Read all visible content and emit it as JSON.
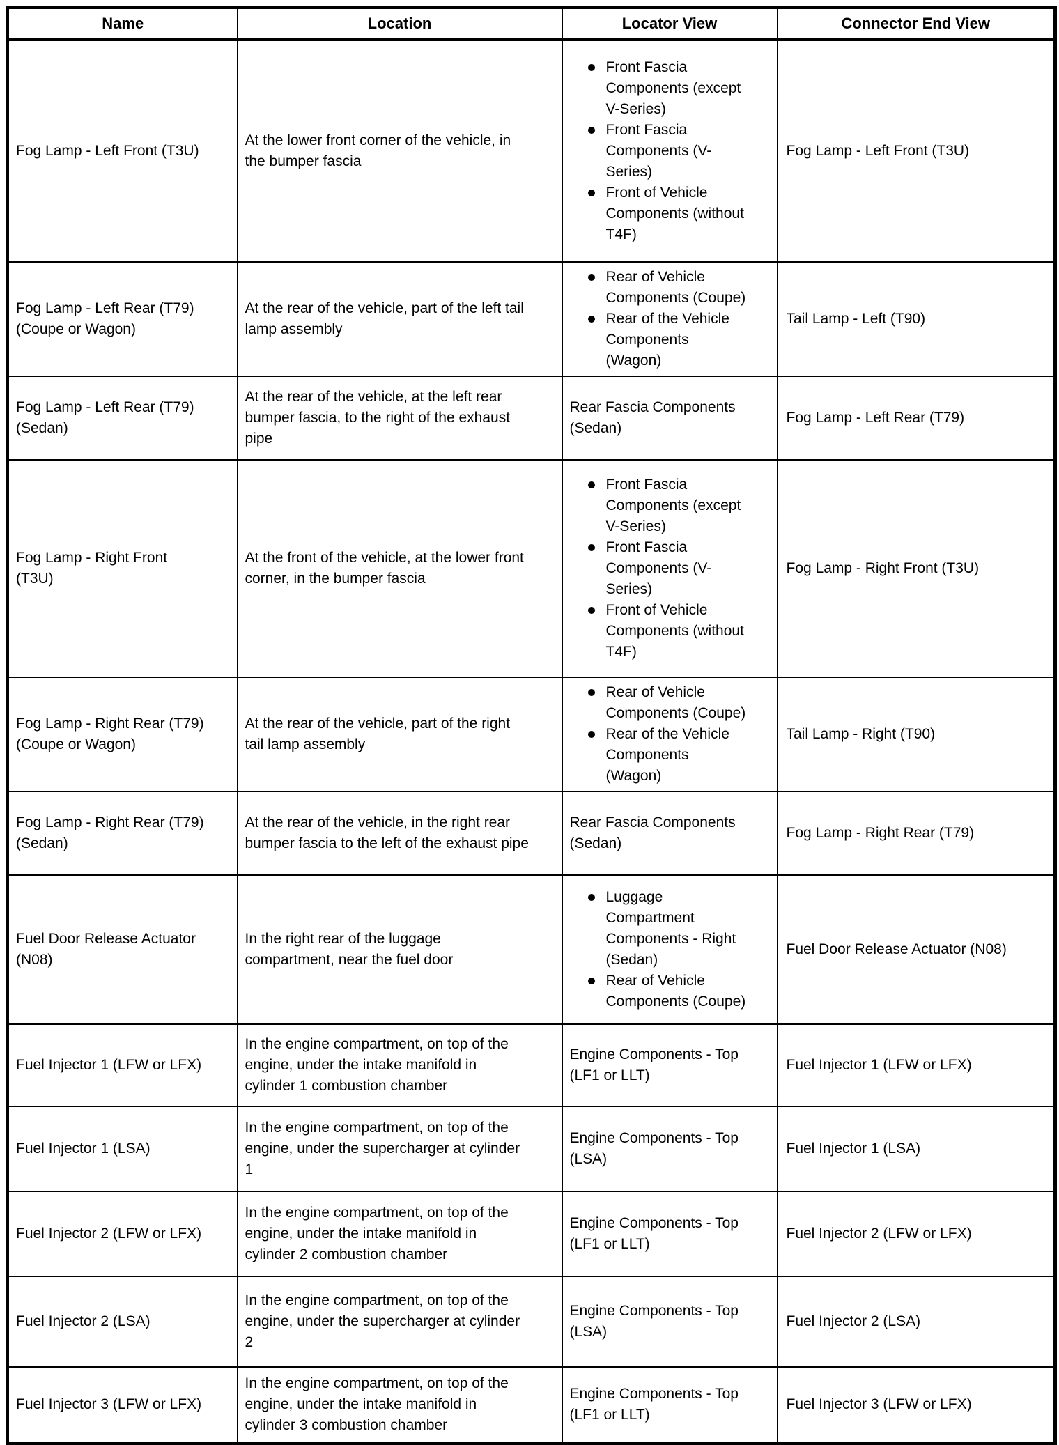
{
  "colors": {
    "text": "#000000",
    "border": "#000000",
    "background": "#ffffff"
  },
  "table": {
    "columns": [
      {
        "label": "Name"
      },
      {
        "label": "Location"
      },
      {
        "label": "Locator View"
      },
      {
        "label": "Connector End View"
      }
    ],
    "rows": [
      {
        "name": "Fog Lamp - Left Front (T3U)",
        "location": "At the lower front corner of the vehicle, in the bumper fascia",
        "locator_view": {
          "style": "bullets",
          "items": [
            "Front Fascia Components (except V-Series)",
            "Front Fascia Components (V-Series)",
            "Front of Vehicle Components (without T4F)"
          ]
        },
        "connector_end_view": "Fog Lamp - Left Front (T3U)"
      },
      {
        "name": "Fog Lamp - Left Rear (T79) (Coupe or Wagon)",
        "location": "At the rear of the vehicle, part of the left tail lamp assembly",
        "locator_view": {
          "style": "bullets",
          "items": [
            "Rear of Vehicle Components (Coupe)",
            "Rear of the Vehicle Components (Wagon)"
          ]
        },
        "connector_end_view": "Tail Lamp - Left (T90)"
      },
      {
        "name": "Fog Lamp - Left Rear (T79) (Sedan)",
        "location": "At the rear of the vehicle, at the left rear bumper fascia, to the right of the exhaust pipe",
        "locator_view": {
          "style": "text",
          "text": "Rear Fascia Components (Sedan)"
        },
        "connector_end_view": "Fog Lamp - Left Rear (T79)"
      },
      {
        "name": "Fog Lamp - Right Front (T3U)",
        "location": "At the front of the vehicle, at the lower front corner, in the bumper fascia",
        "locator_view": {
          "style": "bullets",
          "items": [
            "Front Fascia Components (except V-Series)",
            "Front Fascia Components (V-Series)",
            "Front of Vehicle Components (without T4F)"
          ]
        },
        "connector_end_view": "Fog Lamp - Right Front (T3U)"
      },
      {
        "name": "Fog Lamp - Right Rear (T79) (Coupe or Wagon)",
        "location": "At the rear of the vehicle, part of the right tail lamp assembly",
        "locator_view": {
          "style": "bullets",
          "items": [
            "Rear of Vehicle Components (Coupe)",
            "Rear of the Vehicle Components (Wagon)"
          ]
        },
        "connector_end_view": "Tail Lamp - Right (T90)"
      },
      {
        "name": "Fog Lamp - Right Rear (T79) (Sedan)",
        "location": "At the rear of the vehicle, in the right rear bumper fascia to the left of the exhaust pipe",
        "locator_view": {
          "style": "text",
          "text": "Rear Fascia Components (Sedan)"
        },
        "connector_end_view": "Fog Lamp - Right Rear (T79)"
      },
      {
        "name": "Fuel Door Release Actuator (N08)",
        "location": "In the right rear of the luggage compartment, near the fuel door",
        "locator_view": {
          "style": "bullets",
          "items": [
            "Luggage Compartment Components - Right (Sedan)",
            "Rear of Vehicle Components (Coupe)"
          ]
        },
        "connector_end_view": "Fuel Door Release Actuator (N08)"
      },
      {
        "name": "Fuel Injector 1 (LFW or LFX)",
        "location": "In the engine compartment, on top of the engine, under the intake manifold in cylinder 1 combustion chamber",
        "locator_view": {
          "style": "text",
          "text": "Engine Components - Top (LF1 or LLT)"
        },
        "connector_end_view": "Fuel Injector 1 (LFW or LFX)"
      },
      {
        "name": "Fuel Injector 1 (LSA)",
        "location": "In the engine compartment, on top of the engine, under the supercharger at cylinder 1",
        "locator_view": {
          "style": "text",
          "text": "Engine Components - Top (LSA)"
        },
        "connector_end_view": "Fuel Injector 1 (LSA)"
      },
      {
        "name": "Fuel Injector 2 (LFW or LFX)",
        "location": "In the engine compartment, on top of the engine, under the intake manifold in cylinder 2 combustion chamber",
        "locator_view": {
          "style": "text",
          "text": "Engine Components - Top (LF1 or LLT)"
        },
        "connector_end_view": "Fuel Injector 2 (LFW or LFX)"
      },
      {
        "name": "Fuel Injector 2 (LSA)",
        "location": "In the engine compartment, on top of the engine, under the supercharger at cylinder 2",
        "locator_view": {
          "style": "text",
          "text": "Engine Components - Top (LSA)"
        },
        "connector_end_view": "Fuel Injector 2 (LSA)"
      },
      {
        "name": "Fuel Injector 3 (LFW or LFX)",
        "location": "In the engine compartment, on top of the engine, under the intake manifold in cylinder 3 combustion chamber",
        "locator_view": {
          "style": "text",
          "text": "Engine Components - Top (LF1 or LLT)"
        },
        "connector_end_view": "Fuel Injector 3 (LFW or LFX)"
      }
    ]
  }
}
